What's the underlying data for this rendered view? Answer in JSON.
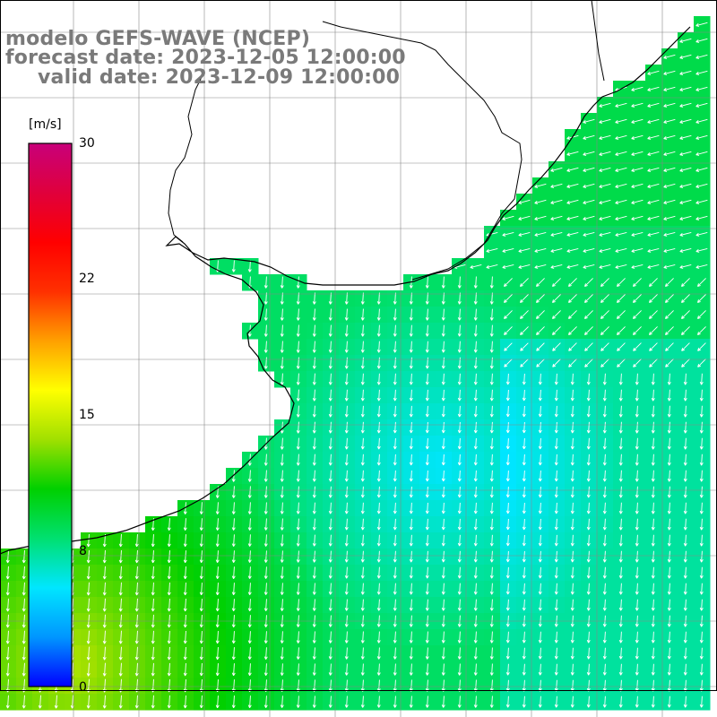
{
  "title": {
    "line1": "modelo GEFS-WAVE (NCEP)",
    "line2": "forecast date: 2023-12-05 12:00:00",
    "line3": "valid date: 2023-12-09 12:00:00"
  },
  "colorbar": {
    "unit": "[m/s]",
    "ticks": [
      "30",
      "22",
      "15",
      "8",
      "0"
    ],
    "range": [
      0,
      30
    ],
    "colors": [
      "#0000ff",
      "#0096ff",
      "#00e6ff",
      "#00e070",
      "#00d000",
      "#a0e000",
      "#ffff00",
      "#ffa000",
      "#ff3000",
      "#ff0000",
      "#e0003c",
      "#c8007a"
    ]
  },
  "chart_data": {
    "type": "heatmap",
    "variable": "wind speed and direction",
    "units": "m/s",
    "value_range": [
      0,
      30
    ],
    "typical_values": {
      "southwest_corner": "12-14",
      "coastal_band": "8-9",
      "central_minimum": "5-6",
      "east_offshore": "6-8"
    },
    "dominant_direction": "arrows point south / south-southwest, turning to westward near the northeast coast"
  }
}
